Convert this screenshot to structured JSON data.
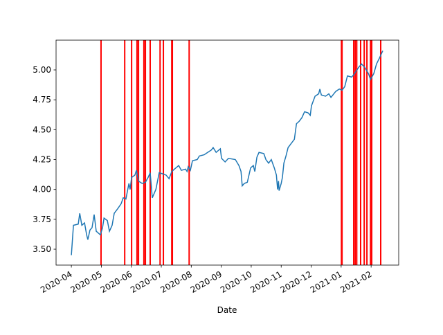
{
  "chart_data": {
    "type": "line",
    "xlabel": "Date",
    "x": [
      0,
      0.07,
      0.23,
      0.28,
      0.35,
      0.44,
      0.51,
      0.55,
      0.62,
      0.69,
      0.76,
      0.83,
      0.97,
      1.04,
      1.09,
      1.2,
      1.27,
      1.36,
      1.43,
      1.55,
      1.66,
      1.73,
      1.82,
      1.92,
      1.96,
      2.01,
      2.12,
      2.17,
      2.24,
      2.36,
      2.47,
      2.56,
      2.63,
      2.7,
      2.82,
      2.93,
      3.05,
      3.16,
      3.26,
      3.35,
      3.44,
      3.58,
      3.67,
      3.81,
      3.86,
      3.9,
      3.97,
      4.04,
      4.2,
      4.27,
      4.43,
      4.55,
      4.67,
      4.73,
      4.83,
      4.97,
      5.01,
      5.13,
      5.24,
      5.47,
      5.59,
      5.66,
      5.7,
      5.77,
      5.87,
      5.98,
      6.07,
      6.12,
      6.19,
      6.26,
      6.42,
      6.49,
      6.58,
      6.67,
      6.77,
      6.84,
      6.88,
      6.91,
      6.93,
      7,
      7.04,
      7.09,
      7.16,
      7.23,
      7.32,
      7.44,
      7.51,
      7.6,
      7.69,
      7.78,
      7.9,
      7.97,
      8.01,
      8.13,
      8.25,
      8.29,
      8.34,
      8.48,
      8.59,
      8.66,
      8.82,
      8.94,
      9.03,
      9.12,
      9.21,
      9.35,
      9.45,
      9.58,
      9.68,
      9.79,
      9.91,
      9.98,
      10.09,
      10.18,
      10.28,
      10.37,
      10.39
    ],
    "series": [
      {
        "color": "#1f77b4",
        "values": [
          3.45,
          3.7,
          3.71,
          3.8,
          3.7,
          3.72,
          3.62,
          3.58,
          3.66,
          3.68,
          3.79,
          3.65,
          3.62,
          3.68,
          3.76,
          3.74,
          3.65,
          3.7,
          3.8,
          3.84,
          3.88,
          3.93,
          3.92,
          4.05,
          4,
          4.1,
          4.12,
          4.16,
          4.07,
          4.05,
          4.06,
          4.1,
          4.14,
          3.93,
          4,
          4.14,
          4.13,
          4.12,
          4.09,
          4.15,
          4.17,
          4.2,
          4.16,
          4.17,
          4.15,
          4.19,
          4.16,
          4.24,
          4.25,
          4.28,
          4.29,
          4.31,
          4.33,
          4.35,
          4.31,
          4.34,
          4.26,
          4.23,
          4.26,
          4.25,
          4.2,
          4.15,
          4.03,
          4.05,
          4.06,
          4.18,
          4.2,
          4.15,
          4.27,
          4.31,
          4.3,
          4.25,
          4.22,
          4.25,
          4.18,
          4.12,
          4,
          4.07,
          3.99,
          4.05,
          4.1,
          4.22,
          4.28,
          4.35,
          4.38,
          4.42,
          4.55,
          4.57,
          4.6,
          4.65,
          4.64,
          4.62,
          4.7,
          4.78,
          4.8,
          4.84,
          4.79,
          4.78,
          4.8,
          4.77,
          4.82,
          4.84,
          4.83,
          4.86,
          4.95,
          4.94,
          4.97,
          5.02,
          5.05,
          5.02,
          4.97,
          4.92,
          4.97,
          5.05,
          5.1,
          5.15,
          5.16
        ]
      }
    ],
    "vlines": {
      "color": "red",
      "x": [
        0.99,
        1.78,
        2.01,
        2.19,
        2.24,
        2.42,
        2.47,
        2.63,
        2.96,
        3.07,
        3.35,
        3.37,
        3.93,
        9.01,
        9.03,
        9.42,
        9.47,
        9.52,
        9.65,
        9.77,
        9.86,
        9.98,
        10.02,
        10.32
      ]
    },
    "xlim": [
      -0.51,
      10.92
    ],
    "xticks": [
      {
        "value": 0,
        "label": "2020-04"
      },
      {
        "value": 1,
        "label": "2020-05"
      },
      {
        "value": 2,
        "label": "2020-06"
      },
      {
        "value": 3,
        "label": "2020-07"
      },
      {
        "value": 4,
        "label": "2020-08"
      },
      {
        "value": 5,
        "label": "2020-09"
      },
      {
        "value": 6,
        "label": "2020-10"
      },
      {
        "value": 7,
        "label": "2020-11"
      },
      {
        "value": 8,
        "label": "2020-12"
      },
      {
        "value": 9,
        "label": "2021-01"
      },
      {
        "value": 10,
        "label": "2021-02"
      }
    ],
    "ylim": [
      3.367,
      5.249
    ],
    "yticks": [
      {
        "value": 3.5,
        "label": "3.50"
      },
      {
        "value": 3.75,
        "label": "3.75"
      },
      {
        "value": 4,
        "label": "4.00"
      },
      {
        "value": 4.25,
        "label": "4.25"
      },
      {
        "value": 4.5,
        "label": "4.50"
      },
      {
        "value": 4.75,
        "label": "4.75"
      },
      {
        "value": 5,
        "label": "5.00"
      }
    ]
  }
}
